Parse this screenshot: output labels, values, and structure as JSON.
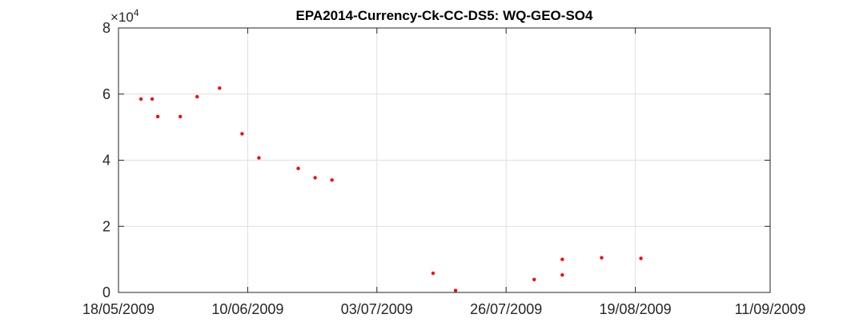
{
  "chart_data": {
    "type": "scatter",
    "title": "EPA2014-Currency-Ck-CC-DS5: WQ-GEO-SO4",
    "xlabel": "",
    "ylabel": "",
    "x_tick_labels": [
      "18/05/2009",
      "10/06/2009",
      "03/07/2009",
      "26/07/2009",
      "19/08/2009",
      "11/09/2009"
    ],
    "x_ticks": [
      "2009-05-18",
      "2009-06-10",
      "2009-07-03",
      "2009-07-26",
      "2009-08-18",
      "2009-09-11"
    ],
    "xlim": [
      "2009-05-18",
      "2009-09-11"
    ],
    "y_tick_labels": [
      "0",
      "2",
      "4",
      "6",
      "8"
    ],
    "y_exponent": {
      "base": "×10",
      "power": "4"
    },
    "ylim": [
      0,
      80000
    ],
    "grid": true,
    "marker_color": "#ff0000",
    "points": [
      {
        "x": "2009-05-22",
        "y": 58500
      },
      {
        "x": "2009-05-24",
        "y": 58500
      },
      {
        "x": "2009-05-25",
        "y": 53200
      },
      {
        "x": "2009-05-29",
        "y": 53200
      },
      {
        "x": "2009-06-01",
        "y": 59200
      },
      {
        "x": "2009-06-05",
        "y": 61800
      },
      {
        "x": "2009-06-09",
        "y": 48000
      },
      {
        "x": "2009-06-12",
        "y": 40700
      },
      {
        "x": "2009-06-19",
        "y": 37500
      },
      {
        "x": "2009-06-22",
        "y": 34700
      },
      {
        "x": "2009-06-25",
        "y": 34000
      },
      {
        "x": "2009-07-13",
        "y": 5800
      },
      {
        "x": "2009-07-17",
        "y": 600
      },
      {
        "x": "2009-07-31",
        "y": 3900
      },
      {
        "x": "2009-08-05",
        "y": 5300
      },
      {
        "x": "2009-08-05",
        "y": 10000
      },
      {
        "x": "2009-08-12",
        "y": 10500
      },
      {
        "x": "2009-08-19",
        "y": 10300
      }
    ]
  }
}
